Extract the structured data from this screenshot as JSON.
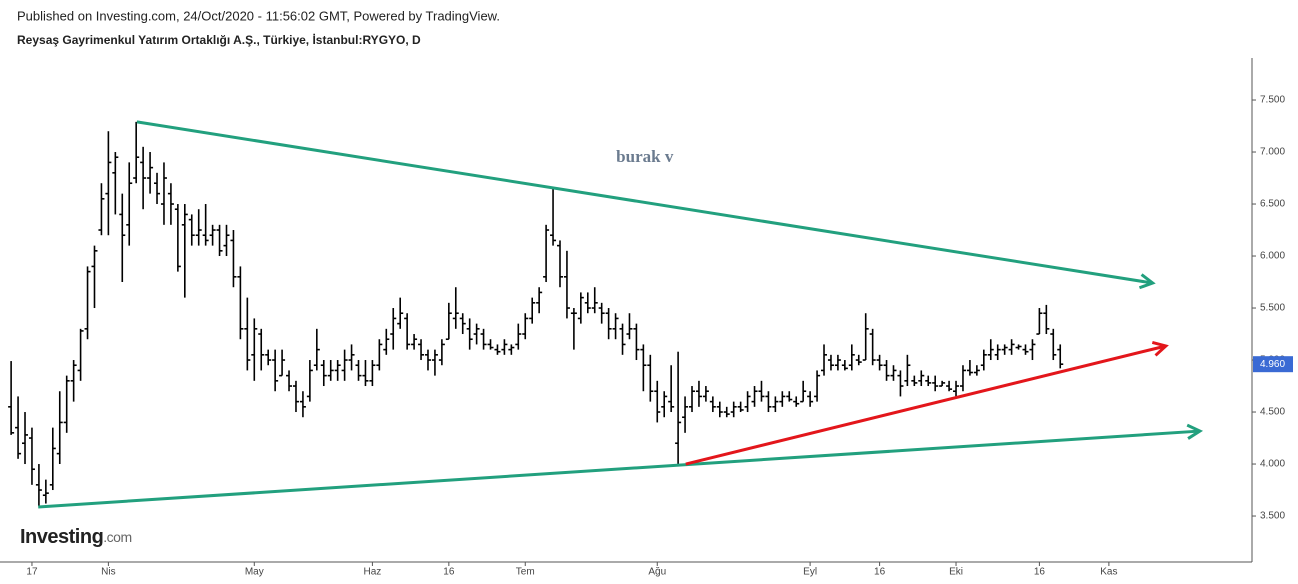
{
  "header": {
    "published": "Published on Investing.com, 24/Oct/2020 - 11:56:02 GMT, Powered by TradingView.",
    "title": "Reysaş Gayrimenkul Yatırım Ortaklığı A.Ş., Türkiye, İstanbul:RYGYO, D"
  },
  "logo": {
    "brand": "Investing",
    "suffix": ".com"
  },
  "chart_data": {
    "type": "ohlc",
    "color": "#000000",
    "xlim": [
      -1.6,
      178.6
    ],
    "xticks": [
      {
        "value": 3,
        "label": "17"
      },
      {
        "value": 14,
        "label": "Nis"
      },
      {
        "value": 35,
        "label": "May"
      },
      {
        "value": 52,
        "label": "Haz"
      },
      {
        "value": 63,
        "label": "16"
      },
      {
        "value": 74,
        "label": "Tem"
      },
      {
        "value": 93,
        "label": "Ağu"
      },
      {
        "value": 115,
        "label": "Eyl"
      },
      {
        "value": 125,
        "label": "16"
      },
      {
        "value": 136,
        "label": "Eki"
      },
      {
        "value": 148,
        "label": "16"
      },
      {
        "value": 158,
        "label": "Kas"
      }
    ],
    "ylim": [
      3.058,
      7.904
    ],
    "yticks": [
      {
        "value": 3.5,
        "label": "3.500"
      },
      {
        "value": 4,
        "label": "4.000"
      },
      {
        "value": 4.5,
        "label": "4.500"
      },
      {
        "value": 5,
        "label": "5.000"
      },
      {
        "value": 5.5,
        "label": "5.500"
      },
      {
        "value": 6,
        "label": "6.000"
      },
      {
        "value": 6.5,
        "label": "6.500"
      },
      {
        "value": 7,
        "label": "7.000"
      },
      {
        "value": 7.5,
        "label": "7.500"
      }
    ],
    "last_price": {
      "value": 4.96,
      "label": "4.960"
    },
    "last_price_color": "#3a6ad4",
    "annotation": {
      "text": "burak v",
      "at": [
        91.2,
        6.94
      ],
      "color": "#6b7b8f"
    },
    "drawings": [
      {
        "color": "#22a07e",
        "points": [
          [
            18.1,
            7.29
          ],
          [
            164.3,
            5.74
          ]
        ]
      },
      {
        "color": "#22a07e",
        "points": [
          [
            3.9,
            3.587
          ],
          [
            171.1,
            4.317
          ]
        ]
      },
      {
        "color": "#e3161b",
        "points": [
          [
            97.1,
            4.0
          ],
          [
            166.2,
            5.135
          ]
        ]
      }
    ],
    "ohlc": [
      [
        4.55,
        4.99,
        4.28,
        4.3
      ],
      [
        4.35,
        4.65,
        4.05,
        4.1
      ],
      [
        4.2,
        4.5,
        4.0,
        4.28
      ],
      [
        4.25,
        4.35,
        3.8,
        3.95
      ],
      [
        3.8,
        4.0,
        3.6,
        3.75
      ],
      [
        3.7,
        3.85,
        3.62,
        3.72
      ],
      [
        3.8,
        4.35,
        3.75,
        4.15
      ],
      [
        4.1,
        4.7,
        4.0,
        4.4
      ],
      [
        4.4,
        4.85,
        4.3,
        4.8
      ],
      [
        4.8,
        5.0,
        4.6,
        4.95
      ],
      [
        4.9,
        5.3,
        4.8,
        5.28
      ],
      [
        5.3,
        5.9,
        5.2,
        5.85
      ],
      [
        5.9,
        6.1,
        5.5,
        6.05
      ],
      [
        6.25,
        6.7,
        6.2,
        6.55
      ],
      [
        6.6,
        7.2,
        6.2,
        6.9
      ],
      [
        6.8,
        7.0,
        6.4,
        6.95
      ],
      [
        6.4,
        6.6,
        5.75,
        6.2
      ],
      [
        6.3,
        6.9,
        6.1,
        6.7
      ],
      [
        6.75,
        7.29,
        6.7,
        6.95
      ],
      [
        6.9,
        7.05,
        6.45,
        6.75
      ],
      [
        6.75,
        7.0,
        6.6,
        6.85
      ],
      [
        6.7,
        6.8,
        6.5,
        6.6
      ],
      [
        6.5,
        6.9,
        6.3,
        6.75
      ],
      [
        6.6,
        6.7,
        6.3,
        6.5
      ],
      [
        6.45,
        6.5,
        5.85,
        5.9
      ],
      [
        6.3,
        6.5,
        5.6,
        6.4
      ],
      [
        6.35,
        6.4,
        6.1,
        6.2
      ],
      [
        6.2,
        6.45,
        6.1,
        6.25
      ],
      [
        6.2,
        6.5,
        6.1,
        6.15
      ],
      [
        6.2,
        6.3,
        6.1,
        6.25
      ],
      [
        6.25,
        6.3,
        6.0,
        6.05
      ],
      [
        6.1,
        6.3,
        6.0,
        6.2
      ],
      [
        6.15,
        6.25,
        5.7,
        5.8
      ],
      [
        5.8,
        5.9,
        5.2,
        5.3
      ],
      [
        5.3,
        5.6,
        4.9,
        5.0
      ],
      [
        5.05,
        5.4,
        4.8,
        5.3
      ],
      [
        5.25,
        5.3,
        4.9,
        5.05
      ],
      [
        5.05,
        5.1,
        4.95,
        5.0
      ],
      [
        5.0,
        5.1,
        4.7,
        4.8
      ],
      [
        4.85,
        5.1,
        4.85,
        5.0
      ],
      [
        4.85,
        4.9,
        4.7,
        4.75
      ],
      [
        4.75,
        4.8,
        4.5,
        4.6
      ],
      [
        4.6,
        4.7,
        4.45,
        4.55
      ],
      [
        4.65,
        5.0,
        4.6,
        4.9
      ],
      [
        4.95,
        5.3,
        4.9,
        5.1
      ],
      [
        4.95,
        5.0,
        4.75,
        4.85
      ],
      [
        4.85,
        5.0,
        4.8,
        4.9
      ],
      [
        4.9,
        5.0,
        4.8,
        4.95
      ],
      [
        4.9,
        5.1,
        4.8,
        5.0
      ],
      [
        5.0,
        5.15,
        4.9,
        5.05
      ],
      [
        4.95,
        5.0,
        4.8,
        4.85
      ],
      [
        4.85,
        5.0,
        4.75,
        4.8
      ],
      [
        4.8,
        5.0,
        4.75,
        4.95
      ],
      [
        4.95,
        5.2,
        4.9,
        5.15
      ],
      [
        5.1,
        5.3,
        5.05,
        5.2
      ],
      [
        5.25,
        5.5,
        5.1,
        5.4
      ],
      [
        5.35,
        5.6,
        5.3,
        5.45
      ],
      [
        5.4,
        5.45,
        5.1,
        5.15
      ],
      [
        5.15,
        5.25,
        5.1,
        5.2
      ],
      [
        5.15,
        5.2,
        5.0,
        5.05
      ],
      [
        5.05,
        5.1,
        4.9,
        5.0
      ],
      [
        5.0,
        5.1,
        4.85,
        5.05
      ],
      [
        5.0,
        5.2,
        4.95,
        5.15
      ],
      [
        5.2,
        5.55,
        5.2,
        5.45
      ],
      [
        5.4,
        5.7,
        5.3,
        5.45
      ],
      [
        5.4,
        5.45,
        5.25,
        5.35
      ],
      [
        5.3,
        5.4,
        5.1,
        5.2
      ],
      [
        5.25,
        5.35,
        5.15,
        5.3
      ],
      [
        5.25,
        5.3,
        5.1,
        5.15
      ],
      [
        5.15,
        5.2,
        5.1,
        5.12
      ],
      [
        5.1,
        5.15,
        5.05,
        5.08
      ],
      [
        5.1,
        5.2,
        5.05,
        5.15
      ],
      [
        5.1,
        5.15,
        5.05,
        5.12
      ],
      [
        5.15,
        5.35,
        5.1,
        5.25
      ],
      [
        5.25,
        5.45,
        5.2,
        5.4
      ],
      [
        5.4,
        5.6,
        5.35,
        5.55
      ],
      [
        5.55,
        5.7,
        5.45,
        5.65
      ],
      [
        5.8,
        6.3,
        5.75,
        6.25
      ],
      [
        6.2,
        6.65,
        6.1,
        6.15
      ],
      [
        6.1,
        6.15,
        5.7,
        5.8
      ],
      [
        5.8,
        6.05,
        5.4,
        5.5
      ],
      [
        5.45,
        5.5,
        5.1,
        5.45
      ],
      [
        5.4,
        5.65,
        5.35,
        5.6
      ],
      [
        5.55,
        5.65,
        5.45,
        5.5
      ],
      [
        5.5,
        5.7,
        5.45,
        5.55
      ],
      [
        5.5,
        5.55,
        5.35,
        5.45
      ],
      [
        5.45,
        5.5,
        5.2,
        5.3
      ],
      [
        5.3,
        5.45,
        5.2,
        5.4
      ],
      [
        5.3,
        5.35,
        5.05,
        5.15
      ],
      [
        5.25,
        5.45,
        5.2,
        5.3
      ],
      [
        5.3,
        5.35,
        5.0,
        5.1
      ],
      [
        5.1,
        5.15,
        4.7,
        4.95
      ],
      [
        4.95,
        5.05,
        4.6,
        4.7
      ],
      [
        4.7,
        4.8,
        4.4,
        4.5
      ],
      [
        4.55,
        4.7,
        4.45,
        4.65
      ],
      [
        4.6,
        4.95,
        4.5,
        4.55
      ],
      [
        4.2,
        5.08,
        4.0,
        4.4
      ],
      [
        4.45,
        4.65,
        4.3,
        4.55
      ],
      [
        4.55,
        4.75,
        4.5,
        4.7
      ],
      [
        4.7,
        4.8,
        4.55,
        4.65
      ],
      [
        4.65,
        4.75,
        4.6,
        4.7
      ],
      [
        4.6,
        4.65,
        4.5,
        4.55
      ],
      [
        4.55,
        4.6,
        4.45,
        4.5
      ],
      [
        4.5,
        4.55,
        4.45,
        4.48
      ],
      [
        4.5,
        4.6,
        4.45,
        4.55
      ],
      [
        4.55,
        4.6,
        4.5,
        4.52
      ],
      [
        4.55,
        4.7,
        4.5,
        4.65
      ],
      [
        4.6,
        4.75,
        4.55,
        4.7
      ],
      [
        4.7,
        4.8,
        4.6,
        4.65
      ],
      [
        4.65,
        4.7,
        4.5,
        4.55
      ],
      [
        4.55,
        4.65,
        4.5,
        4.6
      ],
      [
        4.6,
        4.7,
        4.55,
        4.65
      ],
      [
        4.65,
        4.7,
        4.6,
        4.62
      ],
      [
        4.6,
        4.65,
        4.55,
        4.58
      ],
      [
        4.6,
        4.8,
        4.6,
        4.7
      ],
      [
        4.65,
        4.7,
        4.55,
        4.6
      ],
      [
        4.65,
        4.9,
        4.6,
        4.85
      ],
      [
        4.9,
        5.15,
        4.85,
        5.05
      ],
      [
        5.0,
        5.05,
        4.9,
        4.95
      ],
      [
        4.95,
        5.05,
        4.9,
        5.0
      ],
      [
        4.95,
        5.0,
        4.9,
        4.92
      ],
      [
        4.95,
        5.15,
        4.9,
        5.05
      ],
      [
        5.0,
        5.05,
        4.95,
        4.98
      ],
      [
        5.0,
        5.45,
        5.0,
        5.3
      ],
      [
        5.25,
        5.3,
        4.95,
        5.0
      ],
      [
        5.0,
        5.05,
        4.9,
        4.95
      ],
      [
        4.95,
        5.0,
        4.8,
        4.85
      ],
      [
        4.85,
        4.95,
        4.8,
        4.9
      ],
      [
        4.85,
        4.9,
        4.65,
        4.75
      ],
      [
        4.8,
        5.05,
        4.75,
        4.95
      ],
      [
        4.8,
        4.85,
        4.75,
        4.78
      ],
      [
        4.8,
        4.9,
        4.75,
        4.85
      ],
      [
        4.8,
        4.85,
        4.75,
        4.78
      ],
      [
        4.78,
        4.85,
        4.7,
        4.75
      ],
      [
        4.75,
        4.8,
        4.75,
        4.78
      ],
      [
        4.75,
        4.8,
        4.7,
        4.72
      ],
      [
        4.7,
        4.8,
        4.65,
        4.75
      ],
      [
        4.75,
        4.95,
        4.7,
        4.9
      ],
      [
        4.9,
        5.0,
        4.85,
        4.88
      ],
      [
        4.88,
        4.95,
        4.85,
        4.9
      ],
      [
        4.95,
        5.1,
        4.9,
        5.05
      ],
      [
        5.05,
        5.2,
        5.0,
        5.1
      ],
      [
        5.05,
        5.15,
        5.0,
        5.1
      ],
      [
        5.1,
        5.15,
        5.05,
        5.12
      ],
      [
        5.1,
        5.2,
        5.05,
        5.15
      ],
      [
        5.12,
        5.15,
        5.1,
        5.13
      ],
      [
        5.1,
        5.15,
        5.05,
        5.08
      ],
      [
        5.1,
        5.2,
        5.0,
        5.15
      ],
      [
        5.25,
        5.5,
        5.25,
        5.45
      ],
      [
        5.45,
        5.53,
        5.25,
        5.3
      ],
      [
        5.25,
        5.3,
        5.0,
        5.05
      ],
      [
        5.1,
        5.15,
        4.92,
        4.96
      ]
    ]
  }
}
